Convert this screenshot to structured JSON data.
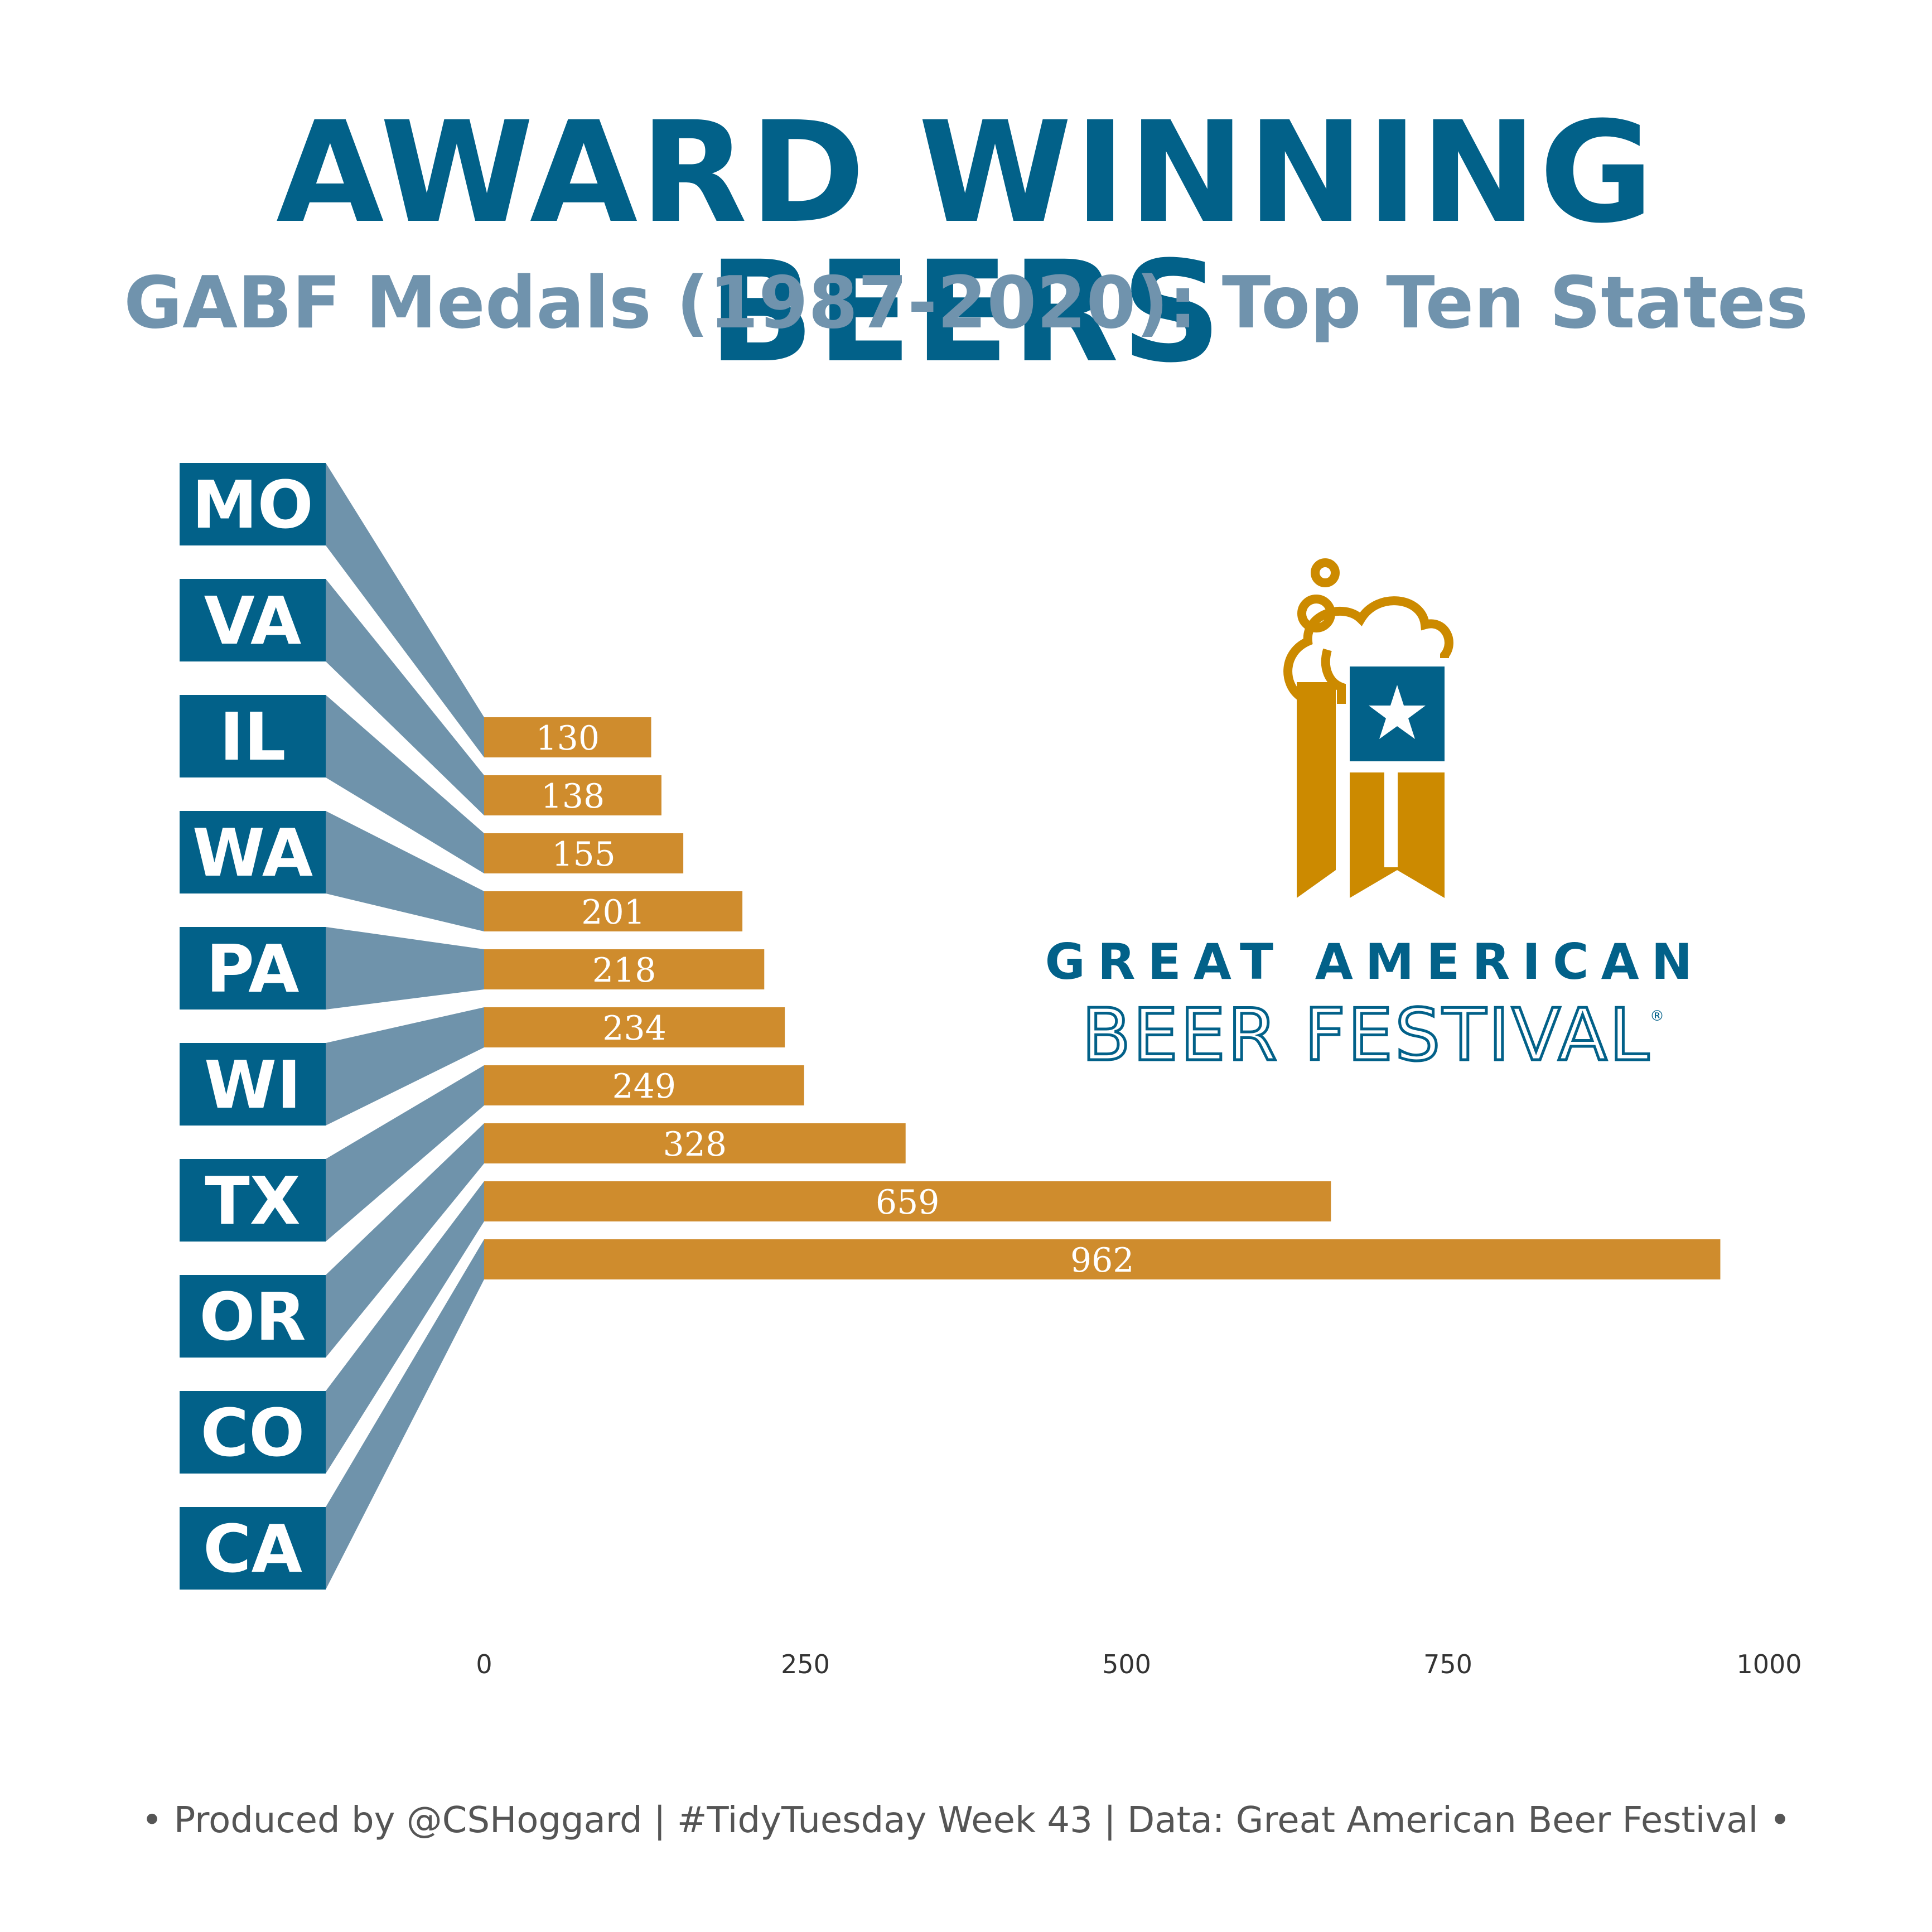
{
  "title": "AWARD WINNING BEERS",
  "subtitle": "GABF Medals (1987-2020): Top Ten States",
  "caption": "• Produced by @CSHoggard | #TidyTuesday Week 43 | Data: Great American Beer Festival •",
  "logo": {
    "line1": "GREAT AMERICAN",
    "line2": "BEER FESTIVAL",
    "mark": "®"
  },
  "colors": {
    "title": "#026189",
    "subtitle": "#7093AD",
    "label_box": "#026189",
    "connector": "#6F93AB",
    "bar": "#CF8C2D",
    "bar_text": "#FFFFFF",
    "caption": "#555555",
    "tick": "#333333",
    "logo_gold": "#CC8A00",
    "logo_blue": "#026189"
  },
  "chart_data": {
    "type": "bar",
    "orientation": "horizontal",
    "categories": [
      "CA",
      "CO",
      "OR",
      "TX",
      "WI",
      "PA",
      "WA",
      "IL",
      "VA",
      "MO"
    ],
    "values": [
      962,
      659,
      328,
      249,
      234,
      218,
      201,
      155,
      138,
      130
    ],
    "xlim": [
      0,
      1000
    ],
    "xticks": [
      0,
      250,
      500,
      750,
      1000
    ],
    "xlabel": "",
    "ylabel": "",
    "grid": false,
    "legend": "none"
  }
}
